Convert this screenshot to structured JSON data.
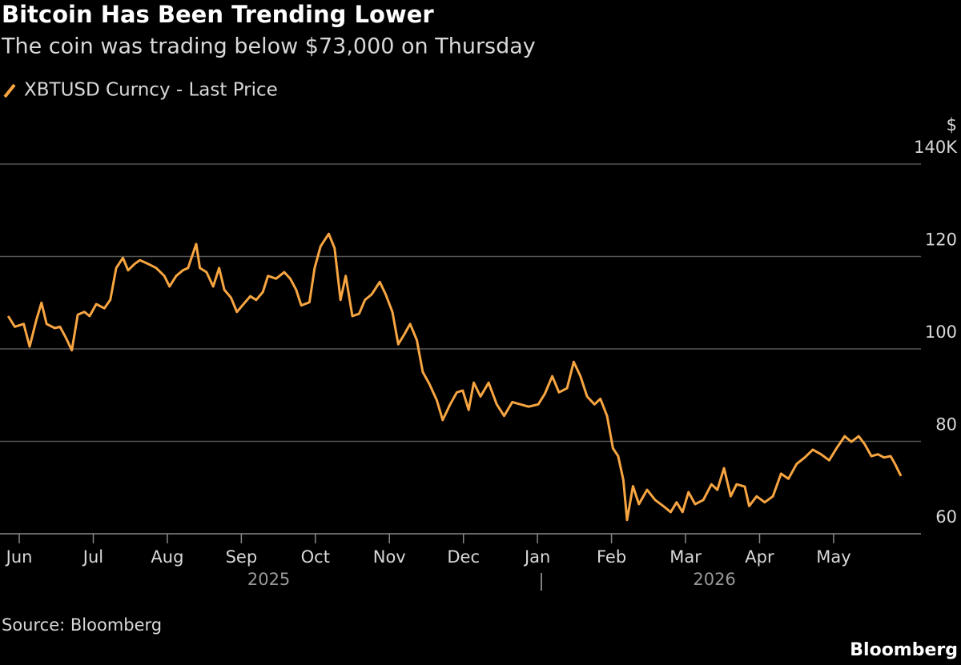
{
  "chart_data": {
    "type": "line",
    "title": "Bitcoin Has Been Trending Lower",
    "subtitle": "The coin was trading below $73,000 on Thursday",
    "y_unit": "$",
    "x": [
      -0.15,
      -0.06,
      0.06,
      0.14,
      0.23,
      0.3,
      0.37,
      0.48,
      0.55,
      0.63,
      0.71,
      0.79,
      0.88,
      0.95,
      1.04,
      1.15,
      1.23,
      1.31,
      1.4,
      1.47,
      1.56,
      1.63,
      1.74,
      1.85,
      1.96,
      2.03,
      2.12,
      2.21,
      2.28,
      2.39,
      2.44,
      2.53,
      2.62,
      2.7,
      2.77,
      2.86,
      2.94,
      3.03,
      3.12,
      3.2,
      3.29,
      3.36,
      3.47,
      3.58,
      3.66,
      3.74,
      3.81,
      3.92,
      3.99,
      4.07,
      4.18,
      4.26,
      4.34,
      4.41,
      4.5,
      4.59,
      4.67,
      4.76,
      4.87,
      4.95,
      5.04,
      5.12,
      5.2,
      5.28,
      5.37,
      5.45,
      5.54,
      5.64,
      5.72,
      5.82,
      5.91,
      5.99,
      6.07,
      6.14,
      6.23,
      6.34,
      6.45,
      6.55,
      6.66,
      6.77,
      6.88,
      7.01,
      7.1,
      7.2,
      7.29,
      7.4,
      7.49,
      7.58,
      7.67,
      7.77,
      7.85,
      7.94,
      8.02,
      8.09,
      8.16,
      8.21,
      8.29,
      8.37,
      8.48,
      8.59,
      8.7,
      8.8,
      8.88,
      8.96,
      9.04,
      9.13,
      9.24,
      9.35,
      9.43,
      9.52,
      9.61,
      9.69,
      9.8,
      9.86,
      9.96,
      10.07,
      10.18,
      10.29,
      10.39,
      10.5,
      10.61,
      10.72,
      10.83,
      10.94,
      11.04,
      11.15,
      11.24,
      11.34,
      11.42,
      11.51,
      11.6,
      11.68,
      11.77,
      11.83,
      11.91
    ],
    "series": [
      {
        "name": "XBTUSD Curncy - Last Price",
        "color": "#f7a541",
        "values": [
          107.1,
          104.8,
          105.4,
          100.5,
          106.2,
          110,
          105.4,
          104.5,
          104.8,
          102.4,
          99.7,
          107.4,
          108,
          107.1,
          109.7,
          108.8,
          110.6,
          117.5,
          119.7,
          117,
          118.4,
          119.2,
          118.4,
          117.5,
          115.8,
          113.5,
          115.8,
          117,
          117.5,
          122.7,
          117.5,
          116.6,
          113.5,
          117.5,
          112.8,
          111.1,
          108,
          109.7,
          111.4,
          110.6,
          112.3,
          115.8,
          115.2,
          116.6,
          115.2,
          112.8,
          109.4,
          110.1,
          117.5,
          122.2,
          124.9,
          121.8,
          110.6,
          115.8,
          107.1,
          107.6,
          110.6,
          111.8,
          114.5,
          111.8,
          108,
          101,
          103.1,
          105.4,
          101.9,
          95,
          92.4,
          88.9,
          84.6,
          88,
          90.6,
          91,
          86.8,
          92.7,
          89.7,
          92.7,
          88,
          85.5,
          88.5,
          88,
          87.5,
          88,
          90.3,
          94.1,
          90.6,
          91.5,
          97.2,
          94.1,
          89.7,
          88,
          89.2,
          85.5,
          78.5,
          76.8,
          71.6,
          63,
          70.3,
          66.4,
          69.5,
          67.3,
          66,
          64.7,
          66.8,
          64.7,
          69,
          66.4,
          67.3,
          70.7,
          69.5,
          74.2,
          68.1,
          70.7,
          70.2,
          66,
          68.1,
          66.8,
          68.1,
          73,
          71.9,
          75.1,
          76.5,
          78.2,
          77.2,
          75.9,
          78.5,
          81.1,
          79.9,
          81.1,
          79.4,
          76.8,
          77.2,
          76.5,
          76.8,
          75.1,
          72.5
        ]
      }
    ],
    "xlim": [
      -0.26,
      12.18
    ],
    "xticks": [
      {
        "value": 0,
        "label": "Jun"
      },
      {
        "value": 1,
        "label": "Jul"
      },
      {
        "value": 2,
        "label": "Aug"
      },
      {
        "value": 3,
        "label": "Sep"
      },
      {
        "value": 4,
        "label": "Oct"
      },
      {
        "value": 5,
        "label": "Nov"
      },
      {
        "value": 6,
        "label": "Dec"
      },
      {
        "value": 7,
        "label": "Jan"
      },
      {
        "value": 8,
        "label": "Feb"
      },
      {
        "value": 9,
        "label": "Mar"
      },
      {
        "value": 10,
        "label": "Apr"
      },
      {
        "value": 11,
        "label": "May"
      }
    ],
    "year_labels": [
      "2025",
      "2026"
    ],
    "ylim": [
      60,
      140
    ],
    "yticks": [
      60,
      80,
      100,
      120,
      {
        "value": 140,
        "label": "140K"
      }
    ],
    "grid": true,
    "source": "Source: Bloomberg",
    "brand": "Bloomberg"
  }
}
